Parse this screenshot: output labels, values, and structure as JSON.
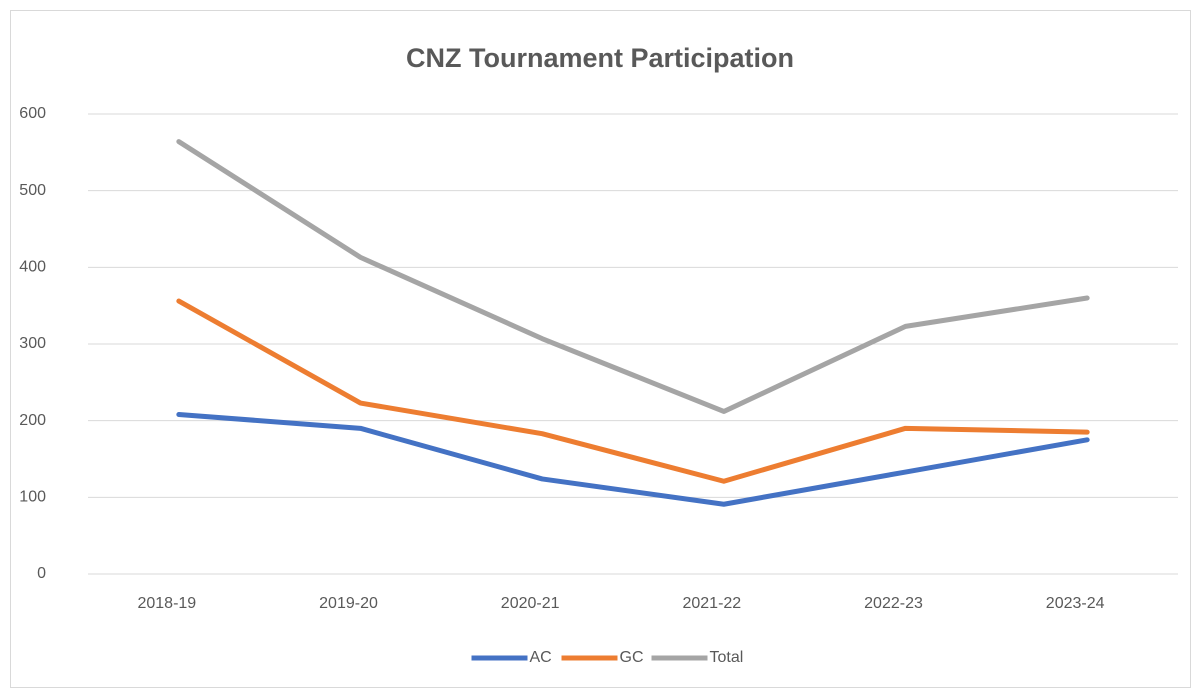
{
  "chart_data": {
    "type": "line",
    "title": "CNZ Tournament Participation",
    "categories": [
      "2018-19",
      "2019-20",
      "2020-21",
      "2021-22",
      "2022-23",
      "2023-24"
    ],
    "series": [
      {
        "name": "AC",
        "color": "#4472c4",
        "values": [
          208,
          190,
          124,
          91,
          133,
          175
        ]
      },
      {
        "name": "GC",
        "color": "#ed7d31",
        "values": [
          356,
          223,
          183,
          121,
          190,
          185
        ]
      },
      {
        "name": "Total",
        "color": "#a5a5a5",
        "values": [
          564,
          413,
          307,
          212,
          323,
          360
        ]
      }
    ],
    "ylim": [
      0,
      600
    ],
    "yticks": [
      0,
      100,
      200,
      300,
      400,
      500,
      600
    ],
    "grid": true,
    "legend": "bottom"
  }
}
